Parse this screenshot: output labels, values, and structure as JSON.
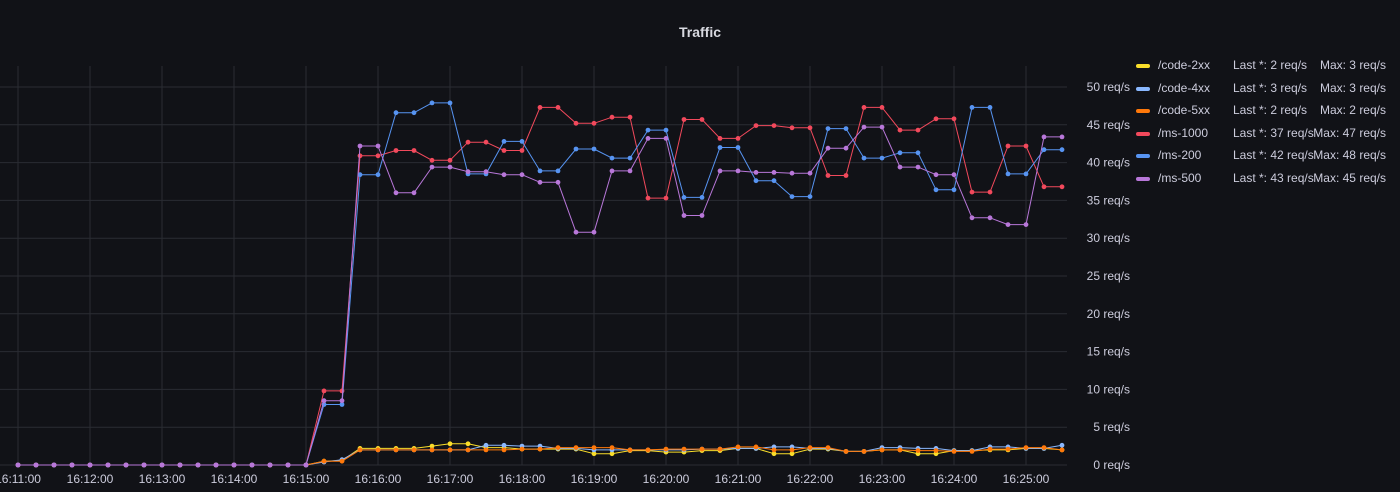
{
  "panel": {
    "title": "Traffic"
  },
  "chart_data": {
    "type": "line",
    "title": "Traffic",
    "x": [
      "16:11:00",
      "16:11:15",
      "16:11:30",
      "16:11:45",
      "16:12:00",
      "16:12:15",
      "16:12:30",
      "16:12:45",
      "16:13:00",
      "16:13:15",
      "16:13:30",
      "16:13:45",
      "16:14:00",
      "16:14:15",
      "16:14:30",
      "16:14:45",
      "16:15:00",
      "16:15:15",
      "16:15:30",
      "16:15:45",
      "16:16:00",
      "16:16:15",
      "16:16:30",
      "16:16:45",
      "16:17:00",
      "16:17:15",
      "16:17:30",
      "16:17:45",
      "16:18:00",
      "16:18:15",
      "16:18:30",
      "16:18:45",
      "16:19:00",
      "16:19:15",
      "16:19:30",
      "16:19:45",
      "16:20:00",
      "16:20:15",
      "16:20:30",
      "16:20:45",
      "16:21:00",
      "16:21:15",
      "16:21:30",
      "16:21:45",
      "16:22:00",
      "16:22:15",
      "16:22:30",
      "16:22:45",
      "16:23:00",
      "16:23:15",
      "16:23:30",
      "16:23:45",
      "16:24:00",
      "16:24:15",
      "16:24:30",
      "16:24:45",
      "16:25:00",
      "16:25:15",
      "16:25:30"
    ],
    "x_ticks": [
      "16:11:00",
      "16:12:00",
      "16:13:00",
      "16:14:00",
      "16:15:00",
      "16:16:00",
      "16:17:00",
      "16:18:00",
      "16:19:00",
      "16:20:00",
      "16:21:00",
      "16:22:00",
      "16:23:00",
      "16:24:00",
      "16:25:00"
    ],
    "y_ticks": [
      "0 req/s",
      "5 req/s",
      "10 req/s",
      "15 req/s",
      "20 req/s",
      "25 req/s",
      "30 req/s",
      "35 req/s",
      "40 req/s",
      "45 req/s",
      "50 req/s"
    ],
    "ylim": [
      0,
      50
    ],
    "unit": "req/s",
    "grid": true,
    "legend_position": "right",
    "series": [
      {
        "name": "/code-2xx",
        "color": "#fade2a",
        "values": [
          0,
          0,
          0,
          0,
          0,
          0,
          0,
          0,
          0,
          0,
          0,
          0,
          0,
          0,
          0,
          0,
          0,
          0.5,
          0.6,
          2.2,
          2.2,
          2.2,
          2.2,
          2.5,
          2.8,
          2.8,
          2.3,
          2.3,
          2.1,
          2.1,
          2.1,
          2.1,
          1.5,
          1.5,
          1.9,
          1.9,
          1.7,
          1.7,
          1.9,
          1.9,
          2.2,
          2.2,
          1.5,
          1.5,
          2.1,
          2.1,
          1.8,
          1.8,
          2.0,
          2.0,
          1.5,
          1.5,
          1.9,
          1.9,
          2.0,
          2.0,
          2.2,
          2.2,
          2.0
        ]
      },
      {
        "name": "/code-4xx",
        "color": "#8ab8ff",
        "values": [
          0,
          0,
          0,
          0,
          0,
          0,
          0,
          0,
          0,
          0,
          0,
          0,
          0,
          0,
          0,
          0,
          0,
          0.4,
          0.7,
          2.0,
          2.0,
          2.0,
          2.0,
          2.0,
          2.0,
          2.0,
          2.6,
          2.6,
          2.5,
          2.5,
          2.2,
          2.2,
          2.0,
          2.0,
          2.0,
          2.0,
          2.0,
          2.0,
          2.1,
          2.1,
          2.2,
          2.2,
          2.4,
          2.4,
          2.2,
          2.2,
          1.8,
          1.8,
          2.3,
          2.3,
          2.2,
          2.2,
          1.9,
          1.9,
          2.4,
          2.4,
          2.2,
          2.2,
          2.6
        ]
      },
      {
        "name": "/code-5xx",
        "color": "#ff780a",
        "values": [
          0,
          0,
          0,
          0,
          0,
          0,
          0,
          0,
          0,
          0,
          0,
          0,
          0,
          0,
          0,
          0,
          0,
          0.5,
          0.5,
          2.0,
          2.0,
          2.0,
          2.0,
          2.0,
          2.0,
          2.0,
          2.0,
          2.0,
          2.1,
          2.1,
          2.3,
          2.3,
          2.3,
          2.3,
          2.0,
          2.0,
          2.1,
          2.1,
          2.1,
          2.1,
          2.4,
          2.4,
          2.0,
          2.0,
          2.3,
          2.3,
          1.8,
          1.8,
          2.0,
          2.0,
          1.9,
          1.9,
          1.8,
          1.8,
          2.1,
          2.1,
          2.3,
          2.3,
          2.0
        ]
      },
      {
        "name": "/ms-1000",
        "color": "#f2495c",
        "values": [
          0,
          0,
          0,
          0,
          0,
          0,
          0,
          0,
          0,
          0,
          0,
          0,
          0,
          0,
          0,
          0,
          0,
          9.8,
          9.8,
          40.9,
          40.9,
          41.6,
          41.6,
          40.3,
          40.3,
          42.7,
          42.7,
          41.6,
          41.6,
          47.3,
          47.3,
          45.2,
          45.2,
          46.0,
          46.0,
          35.3,
          35.3,
          45.7,
          45.7,
          43.2,
          43.2,
          44.9,
          44.9,
          44.6,
          44.6,
          38.3,
          38.3,
          47.3,
          47.3,
          44.3,
          44.3,
          45.8,
          45.8,
          36.1,
          36.1,
          42.2,
          42.2,
          36.8,
          36.8
        ]
      },
      {
        "name": "/ms-200",
        "color": "#5794f2",
        "values": [
          0,
          0,
          0,
          0,
          0,
          0,
          0,
          0,
          0,
          0,
          0,
          0,
          0,
          0,
          0,
          0,
          0,
          8.0,
          8.0,
          38.4,
          38.4,
          46.6,
          46.6,
          47.9,
          47.9,
          38.5,
          38.5,
          42.8,
          42.8,
          38.9,
          38.9,
          41.8,
          41.8,
          40.6,
          40.6,
          44.3,
          44.3,
          35.4,
          35.4,
          42.0,
          42.0,
          37.6,
          37.6,
          35.5,
          35.5,
          44.5,
          44.5,
          40.6,
          40.6,
          41.3,
          41.3,
          36.4,
          36.4,
          47.3,
          47.3,
          38.5,
          38.5,
          41.7,
          41.7
        ]
      },
      {
        "name": "/ms-500",
        "color": "#b877d9",
        "values": [
          0,
          0,
          0,
          0,
          0,
          0,
          0,
          0,
          0,
          0,
          0,
          0,
          0,
          0,
          0,
          0,
          0,
          8.5,
          8.5,
          42.2,
          42.2,
          36.0,
          36.0,
          39.4,
          39.4,
          38.8,
          38.8,
          38.4,
          38.4,
          37.4,
          37.4,
          30.8,
          30.8,
          38.9,
          38.9,
          43.2,
          43.2,
          33.0,
          33.0,
          38.9,
          38.9,
          38.7,
          38.7,
          38.6,
          38.6,
          41.9,
          41.9,
          44.7,
          44.7,
          39.4,
          39.4,
          38.4,
          38.4,
          32.7,
          32.7,
          31.8,
          31.8,
          43.4,
          43.4
        ]
      }
    ]
  },
  "legend": {
    "items": [
      {
        "name": "/code-2xx",
        "last": "Last *: 2 req/s",
        "max": "Max: 3 req/s",
        "color": "#fade2a"
      },
      {
        "name": "/code-4xx",
        "last": "Last *: 3 req/s",
        "max": "Max: 3 req/s",
        "color": "#8ab8ff"
      },
      {
        "name": "/code-5xx",
        "last": "Last *: 2 req/s",
        "max": "Max: 2 req/s",
        "color": "#ff780a"
      },
      {
        "name": "/ms-1000",
        "last": "Last *: 37 req/s",
        "max": "Max: 47 req/s",
        "color": "#f2495c"
      },
      {
        "name": "/ms-200",
        "last": "Last *: 42 req/s",
        "max": "Max: 48 req/s",
        "color": "#5794f2"
      },
      {
        "name": "/ms-500",
        "last": "Last *: 43 req/s",
        "max": "Max: 45 req/s",
        "color": "#b877d9"
      }
    ]
  }
}
